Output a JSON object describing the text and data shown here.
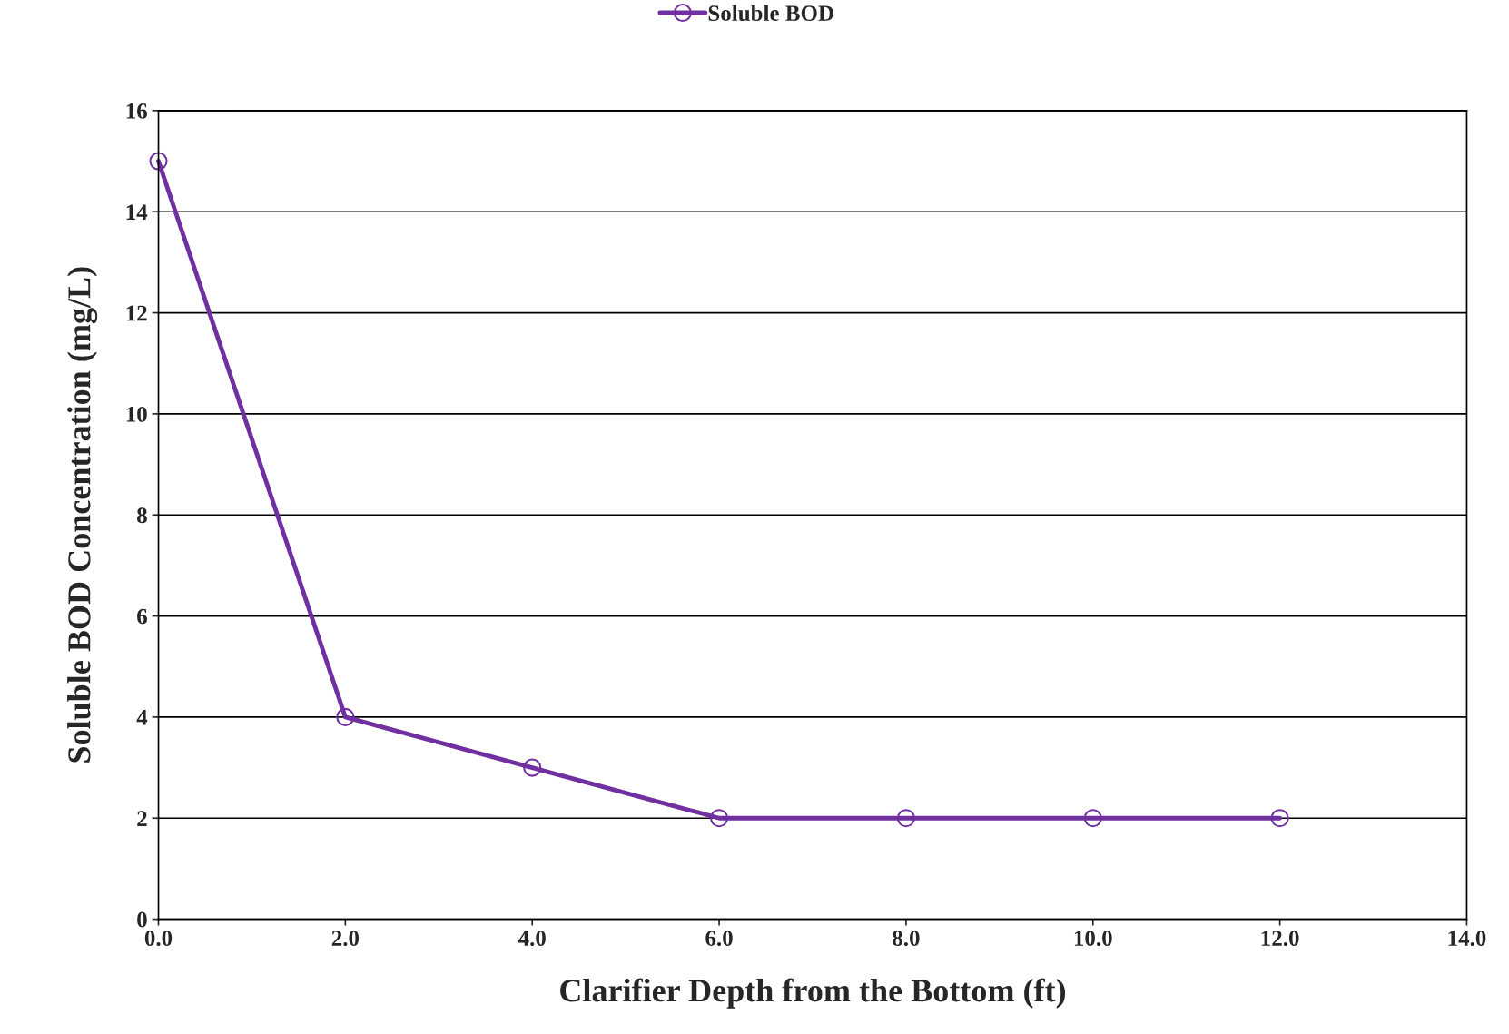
{
  "chart_data": {
    "type": "line",
    "xlabel": "Clarifier Depth from the Bottom (ft)",
    "ylabel": "Soluble BOD Concentration (mg/L)",
    "x": [
      0,
      2,
      4,
      6,
      8,
      10,
      12
    ],
    "series": [
      {
        "name": "Soluble BOD",
        "color": "#7030a0",
        "values": [
          15,
          4,
          3,
          2,
          2,
          2,
          2
        ]
      }
    ],
    "xlim": [
      0,
      14
    ],
    "xticks": [
      {
        "value": 0,
        "label": "0.0"
      },
      {
        "value": 2,
        "label": "2.0"
      },
      {
        "value": 4,
        "label": "4.0"
      },
      {
        "value": 6,
        "label": "6.0"
      },
      {
        "value": 8,
        "label": "8.0"
      },
      {
        "value": 10,
        "label": "10.0"
      },
      {
        "value": 12,
        "label": "12.0"
      },
      {
        "value": 14,
        "label": "14.0"
      }
    ],
    "ylim": [
      0,
      16
    ],
    "yticks": [
      0,
      2,
      4,
      6,
      8,
      10,
      12,
      14,
      16
    ],
    "grid": "y",
    "legend": "top",
    "marker": "circle",
    "line_style": "solid"
  }
}
